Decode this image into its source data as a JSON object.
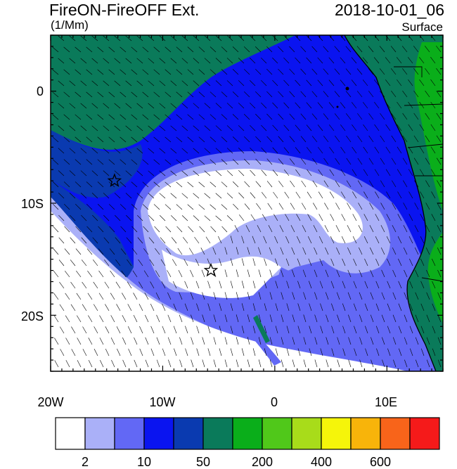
{
  "header": {
    "title": "FireON-FireOFF Ext.",
    "units": "(1/Mm)",
    "datetime": "2018-10-01_06",
    "level": "Surface"
  },
  "map": {
    "lon_range": [
      -20,
      15
    ],
    "lat_range": [
      -25,
      5
    ],
    "x_tick_labels": [
      "20W",
      "10W",
      "0",
      "10E"
    ],
    "y_tick_labels": [
      "0",
      "10S",
      "20S"
    ],
    "markers": [
      {
        "name": "star-marker-1",
        "lon": -14.3,
        "lat": -8.0
      },
      {
        "name": "star-marker-2",
        "lon": -5.7,
        "lat": -16.0
      }
    ]
  },
  "colorbar": {
    "colors": [
      "#ffffff",
      "#aab0f8",
      "#6268f5",
      "#0a14f0",
      "#0a3ab0",
      "#0a7a5a",
      "#0aae1a",
      "#50c81a",
      "#a8dc1a",
      "#f5f50a",
      "#f8b40a",
      "#f8641a",
      "#f51a1a"
    ],
    "labels": [
      "2",
      "10",
      "50",
      "200",
      "400",
      "600"
    ]
  }
}
